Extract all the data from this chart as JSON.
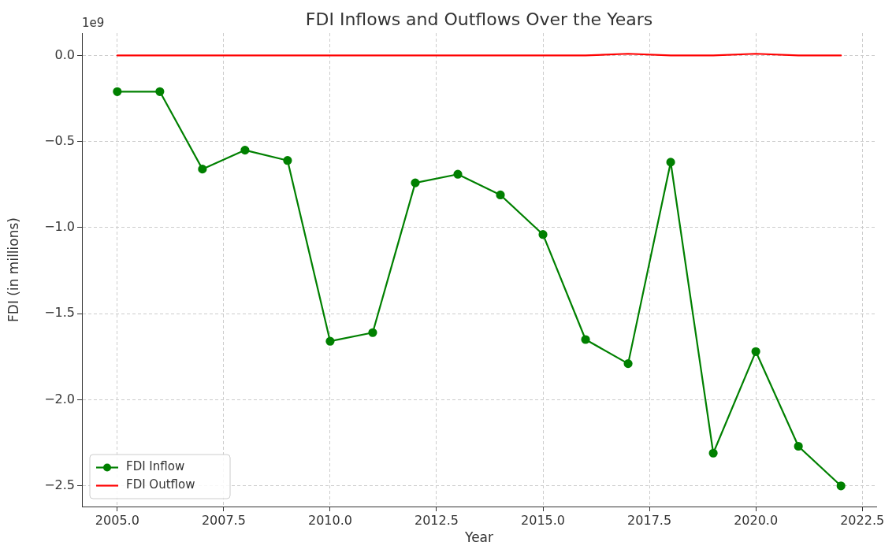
{
  "chart_data": {
    "type": "line",
    "title": "FDI Inflows and Outflows Over the Years",
    "xlabel": "Year",
    "ylabel": "FDI (in millions)",
    "annotations": [
      "1e9"
    ],
    "x": [
      2005,
      2006,
      2007,
      2008,
      2009,
      2010,
      2011,
      2012,
      2013,
      2014,
      2015,
      2016,
      2017,
      2018,
      2019,
      2020,
      2021,
      2022
    ],
    "series": [
      {
        "name": "FDI Inflow",
        "color": "#008000",
        "marker": "circle",
        "values": [
          -0.21,
          -0.21,
          -0.66,
          -0.55,
          -0.61,
          -1.66,
          -1.61,
          -0.74,
          -0.69,
          -0.81,
          -1.04,
          -1.65,
          -1.79,
          -0.62,
          -2.31,
          -1.72,
          -2.27,
          -2.5
        ]
      },
      {
        "name": "FDI Outflow",
        "color": "#ff0000",
        "marker": "none",
        "values": [
          0,
          0,
          0,
          0,
          0,
          0,
          0,
          0,
          0,
          0,
          0,
          0,
          0.01,
          0,
          0,
          0.01,
          0,
          0
        ]
      }
    ],
    "xlim": [
      2004.17,
      2022.83
    ],
    "ylim": [
      -2.62,
      0.13
    ],
    "xticks": [
      {
        "value": 2005,
        "label": "2005.0"
      },
      {
        "value": 2007.5,
        "label": "2007.5"
      },
      {
        "value": 2010,
        "label": "2010.0"
      },
      {
        "value": 2012.5,
        "label": "2012.5"
      },
      {
        "value": 2015,
        "label": "2015.0"
      },
      {
        "value": 2017.5,
        "label": "2017.5"
      },
      {
        "value": 2020,
        "label": "2020.0"
      },
      {
        "value": 2022.5,
        "label": "2022.5"
      }
    ],
    "yticks": [
      {
        "value": -2.5,
        "label": "−2.5"
      },
      {
        "value": -2,
        "label": "−2.0"
      },
      {
        "value": -1.5,
        "label": "−1.5"
      },
      {
        "value": -1,
        "label": "−1.0"
      },
      {
        "value": -0.5,
        "label": "−0.5"
      },
      {
        "value": 0,
        "label": "0.0"
      }
    ],
    "grid": true,
    "legend": "bottom left",
    "line_style": "solid"
  }
}
